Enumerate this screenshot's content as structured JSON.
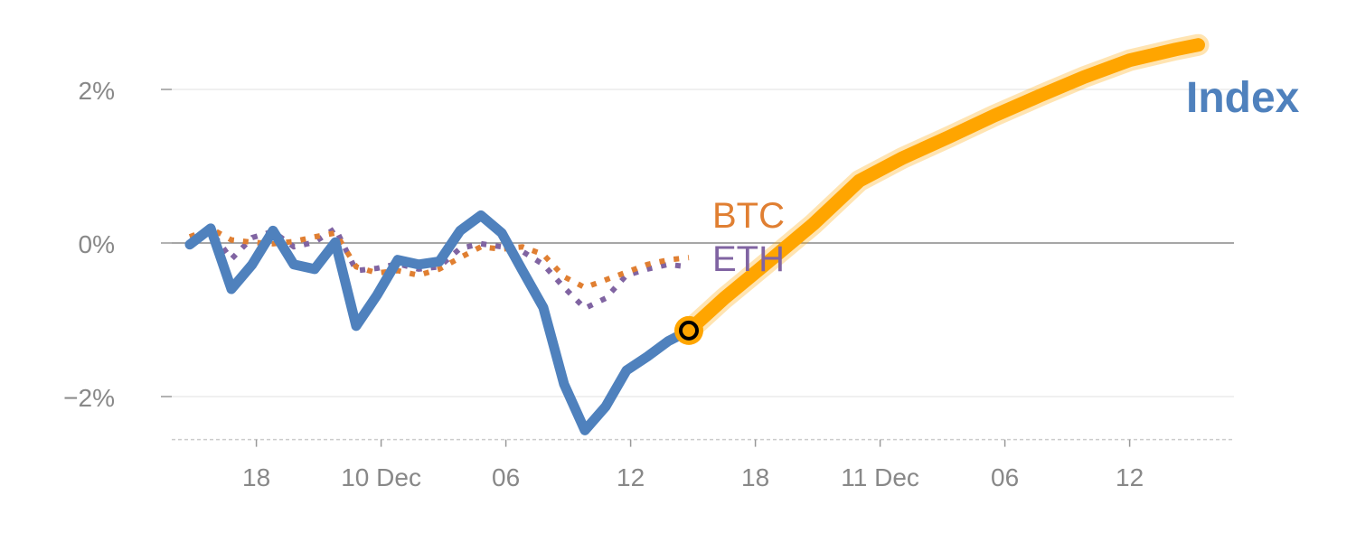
{
  "chart_data": {
    "type": "line",
    "title": "",
    "xlabel": "",
    "ylabel": "",
    "ylim": [
      -2.56,
      2.8
    ],
    "grid": true,
    "x_ticks": [
      {
        "x": 3.2,
        "label": "18"
      },
      {
        "x": 9.2,
        "label": "10 Dec"
      },
      {
        "x": 15.2,
        "label": "06"
      },
      {
        "x": 21.2,
        "label": "12"
      },
      {
        "x": 27.2,
        "label": "18"
      },
      {
        "x": 33.2,
        "label": "11 Dec"
      },
      {
        "x": 39.2,
        "label": "06"
      },
      {
        "x": 45.2,
        "label": "12"
      }
    ],
    "y_ticks": [
      {
        "y": 2,
        "label": "2%"
      },
      {
        "y": 0,
        "label": "0%"
      },
      {
        "y": -2,
        "label": "−2%"
      }
    ],
    "series": [
      {
        "name": "Index",
        "label": "Index",
        "color": "#4f81bd",
        "style": "solid",
        "values": [
          -0.02,
          0.19,
          -0.6,
          -0.28,
          0.16,
          -0.28,
          -0.34,
          0.01,
          -1.08,
          -0.68,
          -0.22,
          -0.28,
          -0.24,
          0.16,
          0.36,
          0.13,
          -0.36,
          -0.84,
          -1.84,
          -2.44,
          -2.13,
          -1.66,
          -1.48,
          -1.28,
          -1.14
        ]
      },
      {
        "name": "BTC",
        "label": "BTC",
        "color": "#e07f32",
        "style": "dotted",
        "values": [
          0.08,
          0.19,
          0.04,
          0.01,
          -0.01,
          0.02,
          0.08,
          0.13,
          -0.31,
          -0.39,
          -0.36,
          -0.42,
          -0.34,
          -0.19,
          -0.05,
          -0.08,
          -0.05,
          -0.15,
          -0.44,
          -0.58,
          -0.48,
          -0.38,
          -0.28,
          -0.22,
          -0.19
        ]
      },
      {
        "name": "ETH",
        "label": "ETH",
        "color": "#8064a2",
        "style": "dotted",
        "values": [
          0.08,
          0.16,
          -0.21,
          0.07,
          0.15,
          -0.05,
          0.01,
          0.19,
          -0.36,
          -0.33,
          -0.27,
          -0.34,
          -0.31,
          -0.07,
          -0.01,
          -0.05,
          -0.11,
          -0.28,
          -0.58,
          -0.85,
          -0.72,
          -0.42,
          -0.34,
          -0.28,
          -0.31
        ]
      }
    ],
    "forecast": {
      "name": "Index forecast",
      "color": "#ffa500",
      "x": [
        24,
        25.7,
        27.8,
        30,
        32.2,
        34.3,
        36.5,
        38.7,
        40.9,
        43,
        45.2,
        47.4,
        48.5
      ],
      "y": [
        -1.14,
        -0.72,
        -0.25,
        0.25,
        0.81,
        1.11,
        1.38,
        1.66,
        1.92,
        2.16,
        2.38,
        2.52,
        2.58
      ]
    },
    "marker": {
      "x": 24,
      "y": -1.14
    }
  }
}
